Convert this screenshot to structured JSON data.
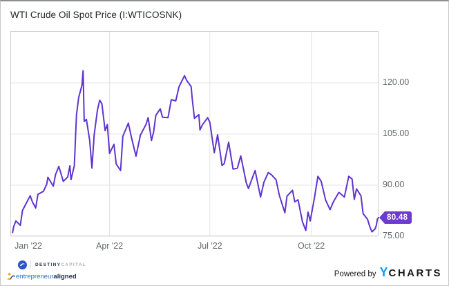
{
  "title": "WTI Crude Oil Spot Price (I:WTICOSNK)",
  "price_badge": {
    "value": "80.48",
    "bg": "#6d3bd2",
    "text_color": "#ffffff"
  },
  "footer": {
    "destiny_bold": "DESTINY",
    "destiny_light": "CAPITAL",
    "ea_part1": "entrepreneur",
    "ea_part2": "aligned",
    "powered_by": "Powered by",
    "ycharts_y": "Y",
    "ycharts_rest": "CHARTS"
  },
  "colors": {
    "line": "#5e33cf",
    "badge": "#6d3bd2",
    "grid": "#e4e4e4",
    "plot_border": "#cfcfcf",
    "tick_text": "#63676c",
    "ycharts_blue": "#0e9cf4"
  },
  "chart_data": {
    "type": "line",
    "title": "WTI Crude Oil Spot Price (I:WTICOSNK)",
    "xlabel": "",
    "ylabel": "",
    "grid": true,
    "legend": "none",
    "ylim": [
      75.0,
      135.2
    ],
    "x_domain": [
      "2022-01-01",
      "2022-12-01"
    ],
    "y_ticks": [
      "120.00",
      "105.00",
      "90.00",
      "75.00"
    ],
    "y_tick_values": [
      120,
      105,
      90,
      75
    ],
    "x_ticks": [
      "Jan '22",
      "Apr '22",
      "Jul '22",
      "Oct '22"
    ],
    "x_tick_dates": [
      "2022-01-01",
      "2022-04-01",
      "2022-07-01",
      "2022-10-01"
    ],
    "x_grid_dates": [
      "2022-04-01",
      "2022-07-01",
      "2022-10-01"
    ],
    "last_value_label": "80.48",
    "series": [
      {
        "name": "WTI Crude Oil Spot Price",
        "color": "#5e33cf",
        "points": [
          [
            "2022-01-03",
            76.1
          ],
          [
            "2022-01-04",
            77.8
          ],
          [
            "2022-01-06",
            79.5
          ],
          [
            "2022-01-10",
            78.2
          ],
          [
            "2022-01-12",
            82.6
          ],
          [
            "2022-01-14",
            83.8
          ],
          [
            "2022-01-19",
            86.9
          ],
          [
            "2022-01-21",
            85.1
          ],
          [
            "2022-01-24",
            83.3
          ],
          [
            "2022-01-26",
            87.3
          ],
          [
            "2022-01-31",
            88.2
          ],
          [
            "2022-02-03",
            90.3
          ],
          [
            "2022-02-04",
            92.3
          ],
          [
            "2022-02-09",
            89.7
          ],
          [
            "2022-02-11",
            93.1
          ],
          [
            "2022-02-14",
            95.5
          ],
          [
            "2022-02-18",
            91.1
          ],
          [
            "2022-02-22",
            92.4
          ],
          [
            "2022-02-24",
            95.7
          ],
          [
            "2022-02-25",
            91.6
          ],
          [
            "2022-02-28",
            95.7
          ],
          [
            "2022-03-02",
            110.6
          ],
          [
            "2022-03-04",
            115.7
          ],
          [
            "2022-03-07",
            119.4
          ],
          [
            "2022-03-08",
            123.6
          ],
          [
            "2022-03-09",
            108.7
          ],
          [
            "2022-03-11",
            109.3
          ],
          [
            "2022-03-14",
            103.0
          ],
          [
            "2022-03-16",
            95.0
          ],
          [
            "2022-03-18",
            104.7
          ],
          [
            "2022-03-21",
            112.1
          ],
          [
            "2022-03-23",
            114.9
          ],
          [
            "2022-03-25",
            113.9
          ],
          [
            "2022-03-28",
            106.0
          ],
          [
            "2022-03-30",
            107.8
          ],
          [
            "2022-04-01",
            99.3
          ],
          [
            "2022-04-05",
            102.0
          ],
          [
            "2022-04-07",
            96.2
          ],
          [
            "2022-04-11",
            94.3
          ],
          [
            "2022-04-13",
            104.3
          ],
          [
            "2022-04-18",
            108.2
          ],
          [
            "2022-04-21",
            103.8
          ],
          [
            "2022-04-25",
            98.5
          ],
          [
            "2022-04-29",
            104.7
          ],
          [
            "2022-05-04",
            107.8
          ],
          [
            "2022-05-06",
            109.8
          ],
          [
            "2022-05-09",
            103.1
          ],
          [
            "2022-05-11",
            105.7
          ],
          [
            "2022-05-13",
            110.5
          ],
          [
            "2022-05-17",
            112.4
          ],
          [
            "2022-05-19",
            109.9
          ],
          [
            "2022-05-24",
            109.8
          ],
          [
            "2022-05-27",
            115.1
          ],
          [
            "2022-05-31",
            114.7
          ],
          [
            "2022-06-03",
            118.9
          ],
          [
            "2022-06-08",
            122.1
          ],
          [
            "2022-06-10",
            120.7
          ],
          [
            "2022-06-14",
            118.9
          ],
          [
            "2022-06-15",
            115.3
          ],
          [
            "2022-06-17",
            109.6
          ],
          [
            "2022-06-21",
            110.7
          ],
          [
            "2022-06-22",
            106.2
          ],
          [
            "2022-06-24",
            107.6
          ],
          [
            "2022-06-29",
            109.8
          ],
          [
            "2022-07-01",
            108.4
          ],
          [
            "2022-07-05",
            99.5
          ],
          [
            "2022-07-08",
            104.8
          ],
          [
            "2022-07-12",
            95.8
          ],
          [
            "2022-07-14",
            96.3
          ],
          [
            "2022-07-18",
            102.6
          ],
          [
            "2022-07-22",
            94.7
          ],
          [
            "2022-07-26",
            95.0
          ],
          [
            "2022-07-29",
            98.6
          ],
          [
            "2022-08-03",
            90.7
          ],
          [
            "2022-08-05",
            89.0
          ],
          [
            "2022-08-11",
            94.3
          ],
          [
            "2022-08-16",
            86.5
          ],
          [
            "2022-08-19",
            90.8
          ],
          [
            "2022-08-23",
            93.7
          ],
          [
            "2022-08-26",
            93.0
          ],
          [
            "2022-08-30",
            91.6
          ],
          [
            "2022-09-02",
            87.0
          ],
          [
            "2022-09-07",
            81.9
          ],
          [
            "2022-09-09",
            86.8
          ],
          [
            "2022-09-14",
            88.5
          ],
          [
            "2022-09-16",
            85.1
          ],
          [
            "2022-09-19",
            85.7
          ],
          [
            "2022-09-23",
            79.2
          ],
          [
            "2022-09-26",
            76.7
          ],
          [
            "2022-09-28",
            82.1
          ],
          [
            "2022-09-30",
            79.5
          ],
          [
            "2022-10-04",
            86.5
          ],
          [
            "2022-10-07",
            92.6
          ],
          [
            "2022-10-10",
            91.1
          ],
          [
            "2022-10-14",
            85.6
          ],
          [
            "2022-10-18",
            82.8
          ],
          [
            "2022-10-21",
            85.1
          ],
          [
            "2022-10-26",
            87.9
          ],
          [
            "2022-10-31",
            86.5
          ],
          [
            "2022-11-04",
            92.6
          ],
          [
            "2022-11-07",
            91.8
          ],
          [
            "2022-11-09",
            85.8
          ],
          [
            "2022-11-11",
            88.9
          ],
          [
            "2022-11-15",
            86.9
          ],
          [
            "2022-11-17",
            81.6
          ],
          [
            "2022-11-21",
            80.0
          ],
          [
            "2022-11-23",
            77.9
          ],
          [
            "2022-11-25",
            76.3
          ],
          [
            "2022-11-28",
            77.2
          ],
          [
            "2022-11-29",
            78.2
          ],
          [
            "2022-11-30",
            80.1
          ],
          [
            "2022-12-01",
            80.48
          ]
        ]
      }
    ]
  }
}
